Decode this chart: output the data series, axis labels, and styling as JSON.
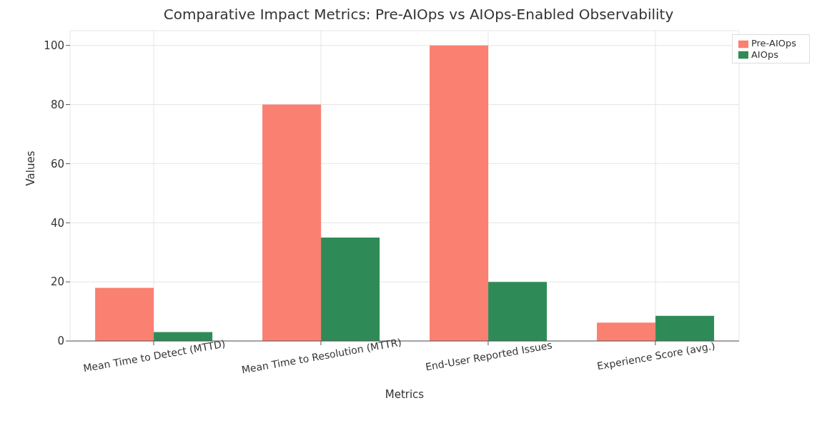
{
  "chart_data": {
    "type": "bar",
    "title": "Comparative Impact Metrics: Pre-AIOps vs AIOps-Enabled Observability",
    "xlabel": "Metrics",
    "ylabel": "Values",
    "categories": [
      "Mean Time to Detect (MTTD)",
      "Mean Time to Resolution (MTTR)",
      "End-User Reported Issues",
      "Experience Score (avg.)"
    ],
    "series": [
      {
        "name": "Pre-AIOps",
        "color": "#fa8072",
        "values": [
          18,
          80,
          100,
          6.2
        ]
      },
      {
        "name": "AIOps",
        "color": "#2e8b57",
        "values": [
          3,
          35,
          20,
          8.5
        ]
      }
    ],
    "ylim": [
      0,
      105
    ],
    "yticks": [
      0,
      20,
      40,
      60,
      80,
      100
    ],
    "grid": true,
    "legend": "top right"
  }
}
